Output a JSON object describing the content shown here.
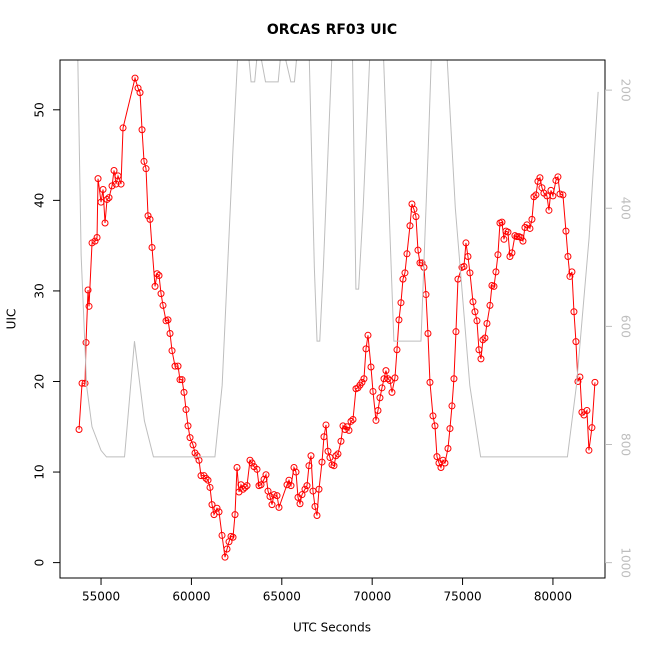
{
  "chart_data": {
    "type": "line",
    "title": "ORCAS RF03 UIC",
    "x_label": "UTC Seconds",
    "y_label": "UIC",
    "xlim": [
      52730,
      82880
    ],
    "ylim": [
      -1.7,
      55.5
    ],
    "y2lim": [
      1026,
      149
    ],
    "xticks": [
      55000,
      60000,
      65000,
      70000,
      75000,
      80000
    ],
    "yticks": [
      0,
      10,
      20,
      30,
      40,
      50
    ],
    "y2ticks": [
      200,
      400,
      600,
      800,
      1000
    ],
    "y2_color": "#bebebe",
    "series": [
      {
        "color": "#ff0000",
        "markers": true,
        "x": [
          53783,
          53949,
          54115,
          54170,
          54281,
          54336,
          54502,
          54668,
          54779,
          54834,
          55000,
          55111,
          55221,
          55332,
          55442,
          55608,
          55719,
          55830,
          55940,
          56106,
          56217,
          56881,
          57046,
          57157,
          57268,
          57378,
          57489,
          57600,
          57710,
          57821,
          57987,
          58097,
          58208,
          58319,
          58429,
          58595,
          58706,
          58816,
          58927,
          59093,
          59259,
          59369,
          59480,
          59591,
          59701,
          59812,
          59923,
          60089,
          60199,
          60310,
          60420,
          60531,
          60697,
          60808,
          60918,
          61029,
          61139,
          61250,
          61416,
          61527,
          61693,
          61858,
          61969,
          62080,
          62190,
          62301,
          62412,
          62522,
          62633,
          62743,
          62854,
          62965,
          63075,
          63241,
          63352,
          63462,
          63628,
          63739,
          63850,
          64016,
          64126,
          64237,
          64347,
          64458,
          64569,
          64735,
          64845,
          65288,
          65398,
          65509,
          65675,
          65785,
          65896,
          66007,
          66117,
          66283,
          66394,
          66504,
          66615,
          66726,
          66836,
          66947,
          67058,
          67224,
          67334,
          67445,
          67555,
          67666,
          67777,
          67887,
          67998,
          68108,
          68274,
          68385,
          68496,
          68606,
          68717,
          68828,
          68938,
          69104,
          69215,
          69325,
          69436,
          69546,
          69657,
          69768,
          69934,
          70044,
          70210,
          70321,
          70431,
          70542,
          70653,
          70763,
          70874,
          70985,
          71095,
          71261,
          71372,
          71482,
          71593,
          71704,
          71814,
          71925,
          72091,
          72201,
          72312,
          72423,
          72533,
          72644,
          72755,
          72865,
          72976,
          73086,
          73197,
          73363,
          73474,
          73584,
          73695,
          73805,
          73916,
          74027,
          74193,
          74303,
          74414,
          74524,
          74635,
          74746,
          74967,
          75078,
          75188,
          75299,
          75409,
          75575,
          75686,
          75797,
          75907,
          76018,
          76128,
          76239,
          76350,
          76516,
          76626,
          76737,
          76847,
          76958,
          77069,
          77179,
          77290,
          77401,
          77511,
          77622,
          77732,
          77898,
          78009,
          78120,
          78230,
          78341,
          78451,
          78562,
          78728,
          78839,
          78949,
          79060,
          79170,
          79281,
          79392,
          79502,
          79668,
          79779,
          79889,
          80000,
          80166,
          80277,
          80387,
          80553,
          80719,
          80830,
          80940,
          81051,
          81162,
          81272,
          81383,
          81493,
          81604,
          81715,
          81881,
          81991,
          82157,
          82323
        ],
        "values": [
          14.7,
          19.8,
          19.8,
          24.3,
          30.1,
          28.3,
          35.3,
          35.5,
          35.9,
          42.4,
          39.8,
          41.2,
          37.5,
          40.1,
          40.3,
          41.6,
          43.3,
          41.8,
          42.7,
          41.8,
          48.0,
          53.5,
          52.4,
          51.9,
          47.8,
          44.3,
          43.5,
          38.3,
          37.9,
          34.8,
          30.5,
          31.9,
          31.7,
          29.7,
          28.4,
          26.7,
          26.8,
          25.3,
          23.4,
          21.7,
          21.7,
          20.2,
          20.2,
          18.8,
          16.9,
          15.1,
          13.8,
          13.0,
          12.1,
          11.8,
          11.3,
          9.6,
          9.6,
          9.3,
          9.1,
          8.3,
          6.4,
          5.3,
          6.0,
          5.6,
          3.0,
          0.6,
          1.5,
          2.3,
          2.9,
          2.8,
          5.3,
          10.5,
          7.8,
          8.6,
          8.1,
          8.3,
          8.5,
          11.3,
          11.0,
          10.6,
          10.3,
          8.5,
          8.6,
          9.2,
          9.7,
          7.9,
          7.3,
          6.4,
          7.5,
          7.4,
          6.1,
          8.6,
          9.1,
          8.5,
          10.5,
          10.0,
          7.2,
          6.5,
          7.5,
          8.1,
          8.5,
          10.7,
          11.8,
          7.9,
          6.2,
          5.2,
          8.1,
          11.1,
          13.9,
          15.2,
          12.3,
          11.6,
          10.8,
          10.7,
          11.8,
          12.0,
          13.4,
          15.1,
          14.7,
          15.0,
          14.6,
          15.6,
          15.8,
          19.2,
          19.3,
          19.6,
          19.9,
          20.3,
          23.6,
          25.1,
          21.6,
          18.9,
          15.7,
          16.8,
          18.2,
          19.3,
          20.3,
          21.2,
          20.3,
          20.1,
          18.8,
          20.4,
          23.5,
          26.8,
          28.7,
          31.3,
          32.0,
          34.1,
          37.2,
          39.6,
          39.0,
          38.2,
          34.5,
          33.1,
          33.1,
          32.6,
          29.6,
          25.3,
          19.9,
          16.2,
          15.1,
          11.7,
          11.0,
          10.5,
          11.3,
          11.0,
          12.6,
          14.8,
          17.3,
          20.3,
          25.5,
          31.3,
          32.6,
          32.7,
          35.3,
          33.8,
          32.0,
          28.8,
          27.7,
          26.7,
          23.5,
          22.5,
          24.6,
          24.8,
          26.4,
          28.4,
          30.6,
          30.5,
          32.1,
          34.0,
          37.5,
          37.6,
          35.7,
          36.6,
          36.5,
          33.8,
          34.2,
          36.1,
          36.0,
          36.0,
          35.9,
          35.5,
          37.0,
          37.3,
          36.9,
          37.9,
          40.4,
          40.6,
          42.1,
          42.5,
          41.4,
          40.8,
          40.5,
          38.9,
          41.1,
          40.5,
          42.2,
          42.6,
          40.7,
          40.6,
          36.6,
          33.8,
          31.6,
          32.1,
          27.7,
          24.4,
          20.0,
          20.5,
          16.6,
          16.3,
          16.8,
          12.4,
          14.9,
          19.9
        ]
      },
      {
        "color": "#bebebe",
        "markers": false,
        "axis": "y2",
        "x": [
          53700,
          53900,
          54200,
          54500,
          55000,
          55300,
          56300,
          56850,
          57400,
          57900,
          61300,
          61700,
          62300,
          62600,
          63100,
          63300,
          63500,
          63700,
          64100,
          64800,
          65000,
          65500,
          65700,
          65900,
          66500,
          66800,
          66950,
          67100,
          67300,
          67800,
          68900,
          69100,
          69250,
          69500,
          69900,
          70600,
          71200,
          72700,
          73100,
          73300,
          74100,
          74600,
          75400,
          76000,
          80800,
          81300,
          82000,
          82500
        ],
        "values": [
          120,
          480,
          700,
          770,
          810,
          821,
          821,
          625,
          760,
          821,
          821,
          700,
          300,
          120,
          120,
          186,
          186,
          120,
          186,
          186,
          120,
          186,
          186,
          120,
          120,
          500,
          625,
          625,
          500,
          120,
          120,
          537,
          537,
          400,
          120,
          120,
          625,
          625,
          300,
          120,
          120,
          400,
          700,
          821,
          821,
          700,
          450,
          203
        ]
      }
    ]
  }
}
